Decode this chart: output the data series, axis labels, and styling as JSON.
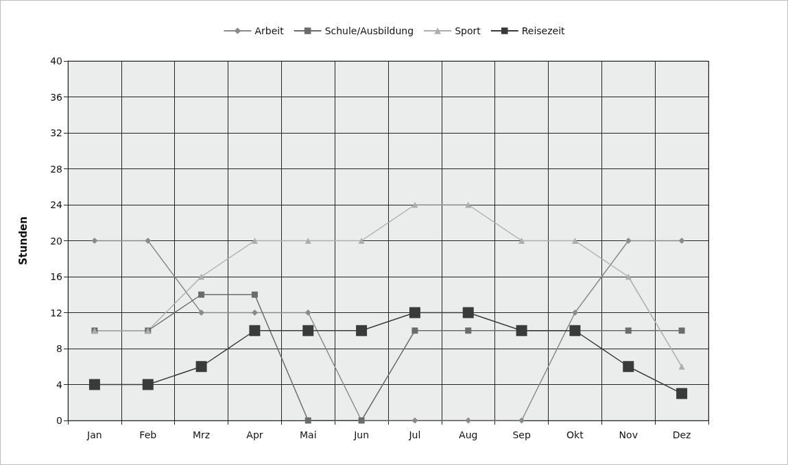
{
  "chart_data": {
    "type": "line",
    "ylabel": "Stunden",
    "categories": [
      "Jan",
      "Feb",
      "Mrz",
      "Apr",
      "Mai",
      "Jun",
      "Jul",
      "Aug",
      "Sep",
      "Okt",
      "Nov",
      "Dez"
    ],
    "series": [
      {
        "name": "Arbeit",
        "color": "#8a8a8a",
        "marker": "diamond",
        "values": [
          20,
          20,
          12,
          12,
          12,
          0,
          0,
          0,
          0,
          12,
          20,
          20
        ]
      },
      {
        "name": "Schule/Ausbildung",
        "color": "#6b6b6b",
        "marker": "square",
        "values": [
          10,
          10,
          14,
          14,
          0,
          0,
          10,
          10,
          10,
          10,
          10,
          10
        ]
      },
      {
        "name": "Sport",
        "color": "#adadad",
        "marker": "triangle",
        "values": [
          10,
          10,
          16,
          20,
          20,
          20,
          24,
          24,
          20,
          20,
          16,
          6
        ]
      },
      {
        "name": "Reisezeit",
        "color": "#3a3a3a",
        "marker": "square",
        "values": [
          4,
          4,
          6,
          10,
          10,
          10,
          12,
          12,
          10,
          10,
          6,
          3
        ]
      }
    ],
    "ylim": [
      0,
      40
    ],
    "yticks": [
      0,
      4,
      8,
      12,
      16,
      20,
      24,
      28,
      32,
      36,
      40
    ],
    "grid": true,
    "legend": "top",
    "line_style": "solid"
  }
}
